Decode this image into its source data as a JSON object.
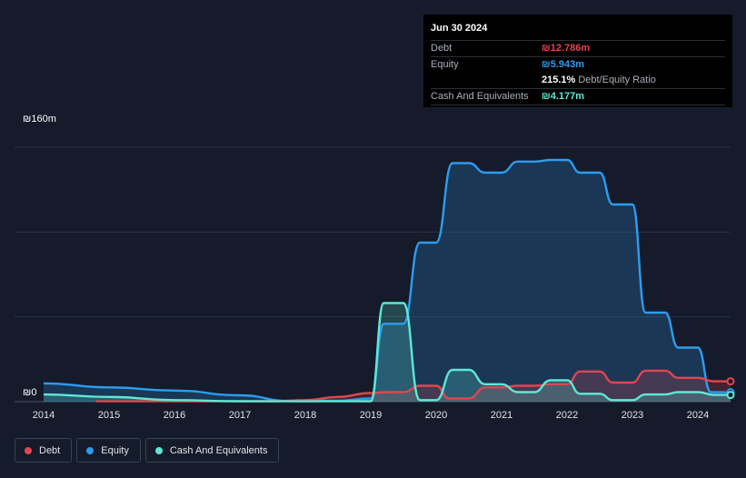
{
  "tooltip": {
    "date": "Jun 30 2024",
    "rows": [
      {
        "label": "Debt",
        "value": "₪12.786m",
        "color": "#e0464f"
      },
      {
        "label": "Equity",
        "value": "₪5.943m",
        "color": "#2d9cf0"
      },
      {
        "label": "",
        "value": "215.1%",
        "sub": "Debt/Equity Ratio",
        "color": "#ffffff"
      },
      {
        "label": "Cash And Equivalents",
        "value": "₪4.177m",
        "color": "#5ee8d6"
      }
    ]
  },
  "legend": [
    {
      "label": "Debt",
      "color": "#e0464f"
    },
    {
      "label": "Equity",
      "color": "#2d9cf0"
    },
    {
      "label": "Cash And Equivalents",
      "color": "#5ee8d6"
    }
  ],
  "chart_data": {
    "type": "area",
    "title": "",
    "y_top_label": "₪160m",
    "y_zero_label": "₪0",
    "ylim": [
      0,
      160
    ],
    "xlim": [
      2014.0,
      2024.5
    ],
    "x_ticks": [
      "2014",
      "2015",
      "2016",
      "2017",
      "2018",
      "2019",
      "2020",
      "2021",
      "2022",
      "2023",
      "2024"
    ],
    "grid": true,
    "series": [
      {
        "name": "Debt",
        "color": "#e0464f",
        "points": [
          [
            2014.8,
            0.2
          ],
          [
            2015.5,
            0.2
          ],
          [
            2016.5,
            0.2
          ],
          [
            2017.5,
            0.3
          ],
          [
            2018.0,
            1.0
          ],
          [
            2018.5,
            3.0
          ],
          [
            2019.0,
            5.5
          ],
          [
            2019.25,
            6.0
          ],
          [
            2019.5,
            6.0
          ],
          [
            2019.75,
            10.0
          ],
          [
            2020.0,
            10.0
          ],
          [
            2020.2,
            2.0
          ],
          [
            2020.5,
            2.0
          ],
          [
            2020.75,
            9.0
          ],
          [
            2021.0,
            9.0
          ],
          [
            2021.25,
            10.0
          ],
          [
            2021.5,
            10.0
          ],
          [
            2021.75,
            11.0
          ],
          [
            2022.0,
            11.0
          ],
          [
            2022.2,
            19.0
          ],
          [
            2022.5,
            19.0
          ],
          [
            2022.7,
            12.0
          ],
          [
            2023.0,
            12.0
          ],
          [
            2023.2,
            19.5
          ],
          [
            2023.5,
            19.5
          ],
          [
            2023.7,
            15.0
          ],
          [
            2024.0,
            15.0
          ],
          [
            2024.25,
            12.8
          ],
          [
            2024.5,
            12.8
          ]
        ]
      },
      {
        "name": "Equity",
        "color": "#2d9cf0",
        "points": [
          [
            2014.0,
            11.5
          ],
          [
            2015.0,
            9.0
          ],
          [
            2016.0,
            7.0
          ],
          [
            2017.0,
            4.0
          ],
          [
            2017.75,
            0.5
          ],
          [
            2018.5,
            0.6
          ],
          [
            2019.0,
            2.0
          ],
          [
            2019.2,
            49.0
          ],
          [
            2019.5,
            49.0
          ],
          [
            2019.75,
            100.0
          ],
          [
            2020.0,
            100.0
          ],
          [
            2020.25,
            150.0
          ],
          [
            2020.5,
            150.0
          ],
          [
            2020.75,
            144.0
          ],
          [
            2021.0,
            144.0
          ],
          [
            2021.25,
            151.0
          ],
          [
            2021.5,
            151.0
          ],
          [
            2021.75,
            152.0
          ],
          [
            2022.0,
            152.0
          ],
          [
            2022.2,
            144.0
          ],
          [
            2022.5,
            144.0
          ],
          [
            2022.7,
            124.0
          ],
          [
            2023.0,
            124.0
          ],
          [
            2023.2,
            56.0
          ],
          [
            2023.5,
            56.0
          ],
          [
            2023.7,
            34.0
          ],
          [
            2024.0,
            34.0
          ],
          [
            2024.2,
            6.0
          ],
          [
            2024.5,
            5.9
          ]
        ]
      },
      {
        "name": "Cash And Equivalents",
        "color": "#5ee8d6",
        "points": [
          [
            2014.0,
            4.5
          ],
          [
            2015.0,
            3.0
          ],
          [
            2016.0,
            1.0
          ],
          [
            2017.0,
            0.3
          ],
          [
            2018.0,
            0.2
          ],
          [
            2019.0,
            0.3
          ],
          [
            2019.2,
            62.0
          ],
          [
            2019.5,
            62.0
          ],
          [
            2019.75,
            1.0
          ],
          [
            2020.0,
            1.0
          ],
          [
            2020.25,
            20.0
          ],
          [
            2020.5,
            20.0
          ],
          [
            2020.75,
            11.0
          ],
          [
            2021.0,
            11.0
          ],
          [
            2021.25,
            6.0
          ],
          [
            2021.5,
            6.0
          ],
          [
            2021.75,
            13.5
          ],
          [
            2022.0,
            13.5
          ],
          [
            2022.2,
            5.0
          ],
          [
            2022.5,
            5.0
          ],
          [
            2022.7,
            1.0
          ],
          [
            2023.0,
            1.0
          ],
          [
            2023.2,
            4.5
          ],
          [
            2023.5,
            4.5
          ],
          [
            2023.7,
            6.0
          ],
          [
            2024.0,
            6.0
          ],
          [
            2024.25,
            4.2
          ],
          [
            2024.5,
            4.2
          ]
        ]
      }
    ]
  }
}
